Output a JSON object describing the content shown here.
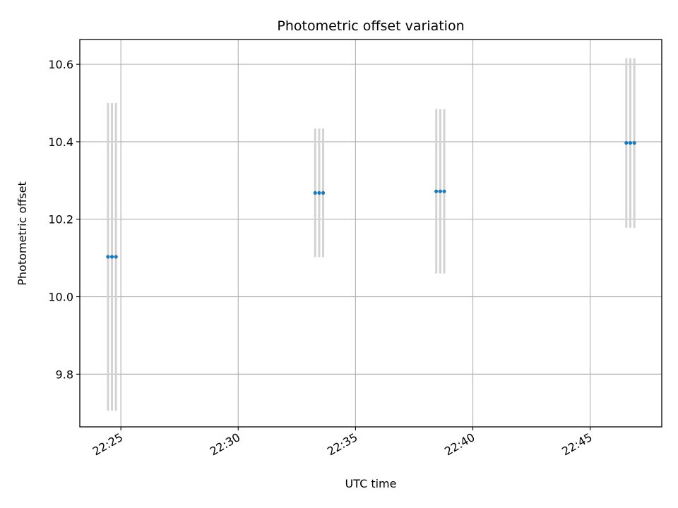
{
  "chart_data": {
    "type": "scatter",
    "title": "Photometric offset variation",
    "xlabel": "UTC time",
    "ylabel": "Photometric offset",
    "x_ticks": [
      "22:25",
      "22:30",
      "22:35",
      "22:40",
      "22:45"
    ],
    "x_tick_minutes": [
      25,
      30,
      35,
      40,
      45
    ],
    "y_ticks": [
      "9.8",
      "10.0",
      "10.2",
      "10.4",
      "10.6"
    ],
    "y_tick_values": [
      9.8,
      10.0,
      10.2,
      10.4,
      10.6
    ],
    "xlim_minutes": [
      23.25,
      48.05
    ],
    "ylim": [
      9.664,
      10.664
    ],
    "grid": true,
    "point_color": "#1f77b4",
    "errorbar_color": "#d3d3d3",
    "points": [
      {
        "t": 24.45,
        "y": 10.103,
        "err": 0.397
      },
      {
        "t": 24.62,
        "y": 10.103,
        "err": 0.397
      },
      {
        "t": 24.79,
        "y": 10.103,
        "err": 0.397
      },
      {
        "t": 33.28,
        "y": 10.268,
        "err": 0.166
      },
      {
        "t": 33.45,
        "y": 10.268,
        "err": 0.166
      },
      {
        "t": 33.62,
        "y": 10.268,
        "err": 0.166
      },
      {
        "t": 38.44,
        "y": 10.272,
        "err": 0.212
      },
      {
        "t": 38.61,
        "y": 10.272,
        "err": 0.212
      },
      {
        "t": 38.78,
        "y": 10.272,
        "err": 0.212
      },
      {
        "t": 46.54,
        "y": 10.397,
        "err": 0.219
      },
      {
        "t": 46.71,
        "y": 10.397,
        "err": 0.219
      },
      {
        "t": 46.88,
        "y": 10.397,
        "err": 0.219
      }
    ]
  }
}
